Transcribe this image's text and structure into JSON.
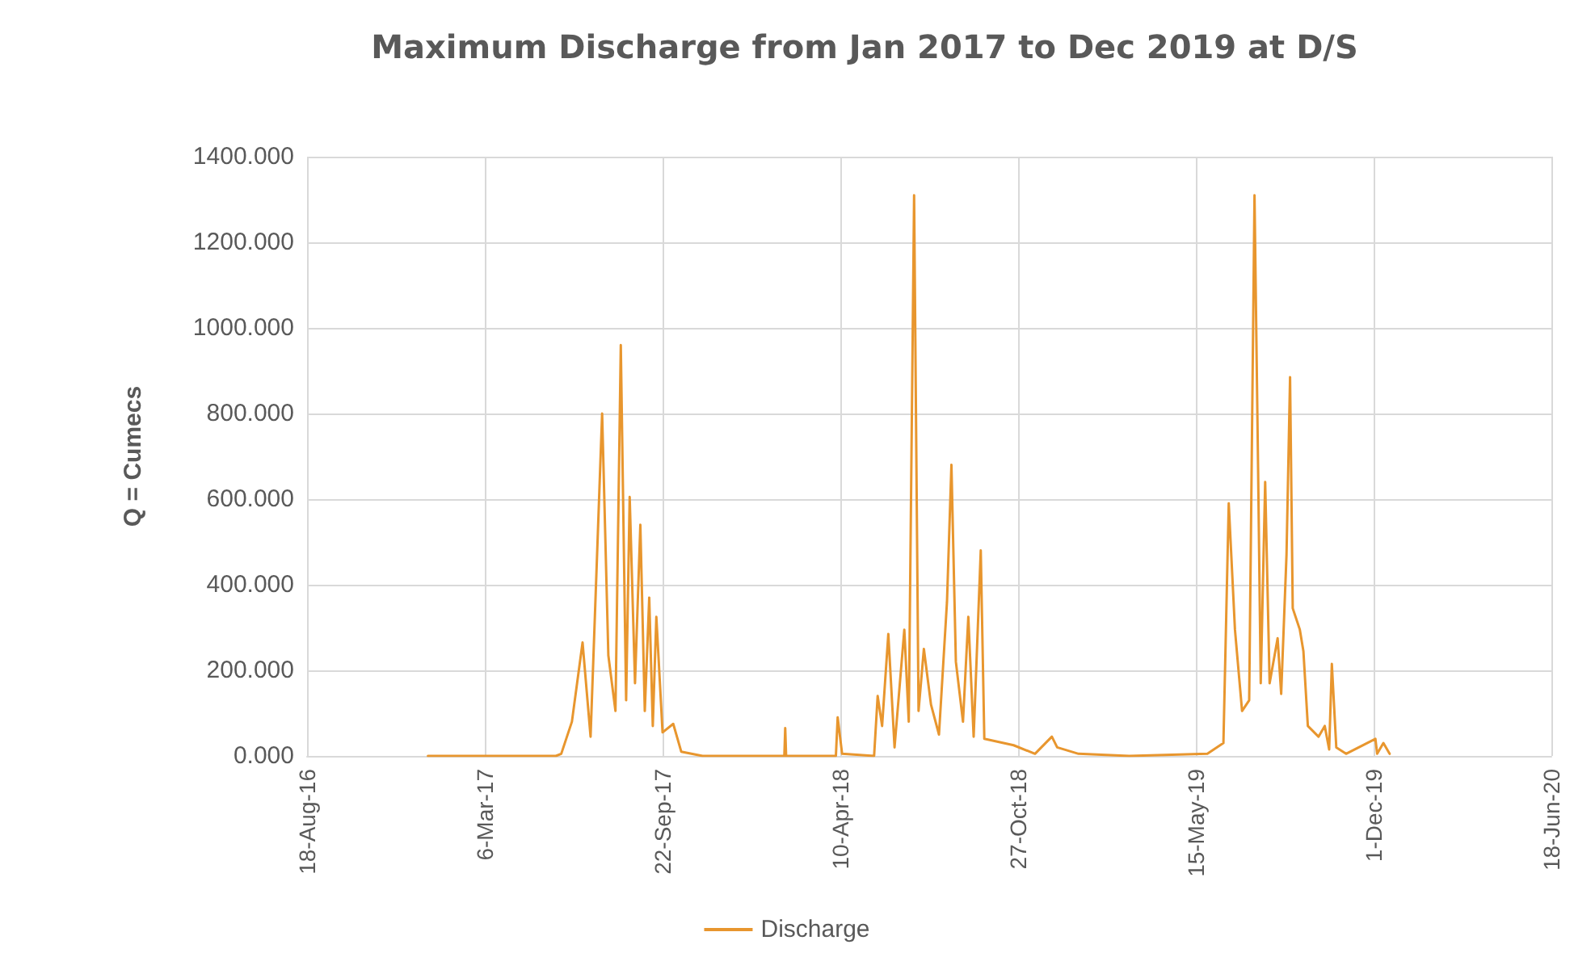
{
  "chart_data": {
    "type": "line",
    "title": "Maximum Discharge from Jan 2017 to Dec 2019 at D/S",
    "ylabel": "Q = Cumecs",
    "x": [
      "2017-01-01",
      "2017-05-25",
      "2017-05-31",
      "2017-06-12",
      "2017-06-24",
      "2017-07-03",
      "2017-07-16",
      "2017-07-23",
      "2017-07-31",
      "2017-08-06",
      "2017-08-12",
      "2017-08-16",
      "2017-08-22",
      "2017-08-28",
      "2017-09-02",
      "2017-09-07",
      "2017-09-11",
      "2017-09-15",
      "2017-09-22",
      "2017-10-04",
      "2017-10-13",
      "2017-11-06",
      "2018-02-06",
      "2018-02-07",
      "2018-02-08",
      "2018-04-05",
      "2018-04-07",
      "2018-04-12",
      "2018-05-18",
      "2018-05-22",
      "2018-05-27",
      "2018-06-03",
      "2018-06-10",
      "2018-06-21",
      "2018-06-26",
      "2018-07-02",
      "2018-07-07",
      "2018-07-13",
      "2018-07-21",
      "2018-07-30",
      "2018-08-08",
      "2018-08-13",
      "2018-08-18",
      "2018-08-26",
      "2018-09-01",
      "2018-09-07",
      "2018-09-15",
      "2018-09-19",
      "2018-10-22",
      "2018-11-15",
      "2018-12-04",
      "2018-12-10",
      "2019-01-03",
      "2019-03-01",
      "2019-05-28",
      "2019-06-15",
      "2019-06-21",
      "2019-06-28",
      "2019-07-06",
      "2019-07-14",
      "2019-07-20",
      "2019-07-24",
      "2019-07-27",
      "2019-08-01",
      "2019-08-06",
      "2019-08-15",
      "2019-08-19",
      "2019-08-25",
      "2019-08-29",
      "2019-09-01",
      "2019-09-09",
      "2019-09-13",
      "2019-09-18",
      "2019-09-30",
      "2019-10-07",
      "2019-10-12",
      "2019-10-15",
      "2019-10-20",
      "2019-10-31",
      "2019-12-03",
      "2019-12-05",
      "2019-12-12",
      "2019-12-19"
    ],
    "series": [
      {
        "name": "Discharge",
        "color": "#e8962e",
        "values": [
          0,
          0,
          5,
          80,
          265,
          45,
          800,
          235,
          105,
          960,
          130,
          605,
          170,
          540,
          105,
          370,
          70,
          325,
          55,
          75,
          10,
          0,
          0,
          65,
          0,
          0,
          90,
          5,
          0,
          140,
          70,
          285,
          20,
          295,
          80,
          1310,
          105,
          250,
          120,
          50,
          360,
          680,
          220,
          80,
          325,
          45,
          480,
          40,
          25,
          5,
          45,
          20,
          5,
          0,
          5,
          30,
          590,
          295,
          105,
          130,
          1310,
          675,
          170,
          640,
          170,
          275,
          145,
          470,
          885,
          345,
          295,
          245,
          70,
          45,
          70,
          15,
          215,
          20,
          5,
          40,
          5,
          30,
          5
        ]
      }
    ],
    "xlim": [
      "2016-08-18",
      "2020-06-18"
    ],
    "xticks": [
      {
        "value": "2016-08-18",
        "label": "18-Aug-16"
      },
      {
        "value": "2017-03-06",
        "label": "6-Mar-17"
      },
      {
        "value": "2017-09-22",
        "label": "22-Sep-17"
      },
      {
        "value": "2018-04-10",
        "label": "10-Apr-18"
      },
      {
        "value": "2018-10-27",
        "label": "27-Oct-18"
      },
      {
        "value": "2019-05-15",
        "label": "15-May-19"
      },
      {
        "value": "2019-12-01",
        "label": "1-Dec-19"
      },
      {
        "value": "2020-06-18",
        "label": "18-Jun-20"
      }
    ],
    "ylim": [
      0,
      1400
    ],
    "yticks": [
      {
        "value": 0,
        "label": "0.000"
      },
      {
        "value": 200,
        "label": "200.000"
      },
      {
        "value": 400,
        "label": "400.000"
      },
      {
        "value": 600,
        "label": "600.000"
      },
      {
        "value": 800,
        "label": "800.000"
      },
      {
        "value": 1000,
        "label": "1000.000"
      },
      {
        "value": 1200,
        "label": "1200.000"
      },
      {
        "value": 1400,
        "label": "1400.000"
      }
    ],
    "grid": true,
    "legend": "bottom",
    "marker": "none",
    "line_style": "solid"
  }
}
